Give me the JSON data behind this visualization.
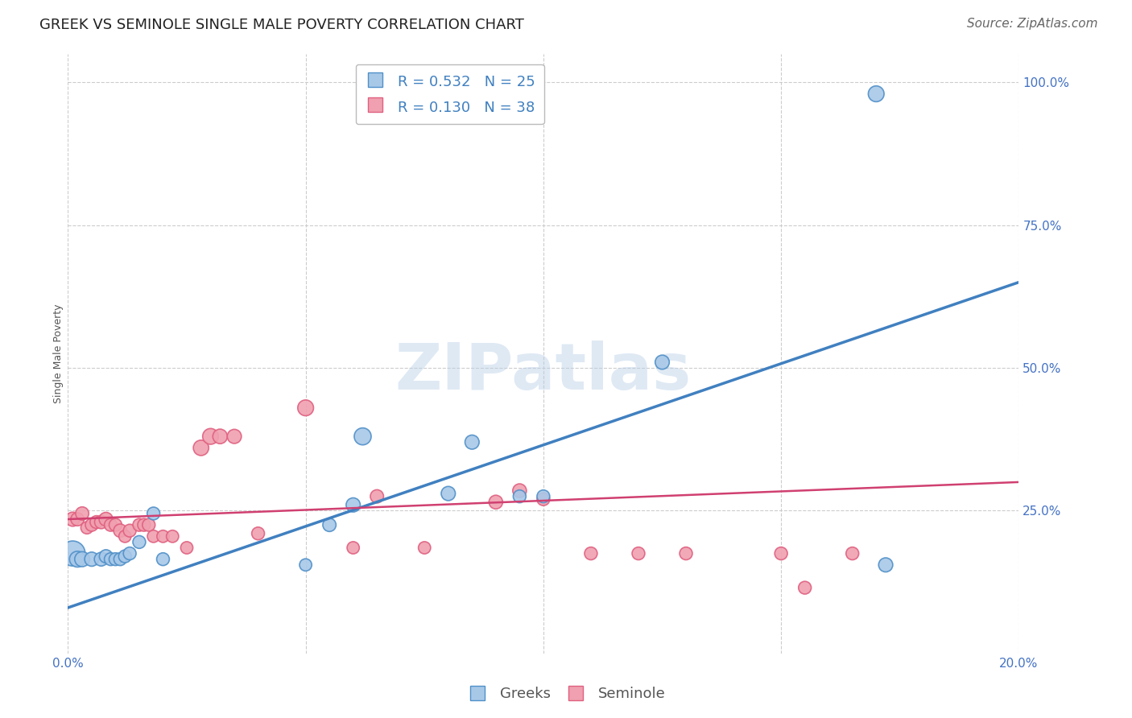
{
  "title": "GREEK VS SEMINOLE SINGLE MALE POVERTY CORRELATION CHART",
  "source": "Source: ZipAtlas.com",
  "ylabel_label": "Single Male Poverty",
  "watermark": "ZIPatlas",
  "xlim": [
    0.0,
    0.2
  ],
  "ylim": [
    0.0,
    1.05
  ],
  "xticks": [
    0.0,
    0.05,
    0.1,
    0.15,
    0.2
  ],
  "xticklabels": [
    "0.0%",
    "",
    "",
    "",
    "20.0%"
  ],
  "yticks_right": [
    1.0,
    0.75,
    0.5,
    0.25
  ],
  "yticklabels_right": [
    "100.0%",
    "75.0%",
    "50.0%",
    "25.0%"
  ],
  "greek_color": "#a8c8e8",
  "seminole_color": "#f0a0b0",
  "greek_edge_color": "#5090c8",
  "seminole_edge_color": "#e06080",
  "greek_line_color": "#4080c0",
  "seminole_line_color": "#d04070",
  "greek_R": 0.532,
  "greek_N": 25,
  "seminole_R": 0.13,
  "seminole_N": 38,
  "greek_trend_x": [
    0.0,
    0.2
  ],
  "greek_trend_y": [
    0.08,
    0.65
  ],
  "seminole_trend_x": [
    0.0,
    0.2
  ],
  "seminole_trend_y": [
    0.235,
    0.3
  ],
  "greeks_x": [
    0.001,
    0.002,
    0.003,
    0.005,
    0.007,
    0.008,
    0.009,
    0.01,
    0.011,
    0.012,
    0.013,
    0.015,
    0.018,
    0.02,
    0.05,
    0.055,
    0.06,
    0.062,
    0.08,
    0.085,
    0.095,
    0.1,
    0.125,
    0.17,
    0.172
  ],
  "greeks_y": [
    0.175,
    0.165,
    0.165,
    0.165,
    0.165,
    0.17,
    0.165,
    0.165,
    0.165,
    0.17,
    0.175,
    0.195,
    0.245,
    0.165,
    0.155,
    0.225,
    0.26,
    0.38,
    0.28,
    0.37,
    0.275,
    0.275,
    0.51,
    0.98,
    0.155
  ],
  "greeks_size": [
    500,
    200,
    180,
    160,
    150,
    140,
    130,
    130,
    130,
    130,
    130,
    130,
    130,
    130,
    120,
    140,
    160,
    230,
    160,
    160,
    130,
    130,
    160,
    200,
    160
  ],
  "seminoles_x": [
    0.001,
    0.002,
    0.003,
    0.004,
    0.005,
    0.006,
    0.007,
    0.008,
    0.009,
    0.01,
    0.011,
    0.012,
    0.013,
    0.015,
    0.016,
    0.017,
    0.018,
    0.02,
    0.022,
    0.025,
    0.028,
    0.03,
    0.032,
    0.035,
    0.04,
    0.05,
    0.06,
    0.065,
    0.075,
    0.09,
    0.095,
    0.1,
    0.11,
    0.12,
    0.13,
    0.15,
    0.155,
    0.165
  ],
  "seminoles_y": [
    0.235,
    0.235,
    0.245,
    0.22,
    0.225,
    0.23,
    0.23,
    0.235,
    0.225,
    0.225,
    0.215,
    0.205,
    0.215,
    0.225,
    0.225,
    0.225,
    0.205,
    0.205,
    0.205,
    0.185,
    0.36,
    0.38,
    0.38,
    0.38,
    0.21,
    0.43,
    0.185,
    0.275,
    0.185,
    0.265,
    0.285,
    0.27,
    0.175,
    0.175,
    0.175,
    0.175,
    0.115,
    0.175
  ],
  "seminoles_size": [
    160,
    140,
    140,
    120,
    130,
    130,
    140,
    150,
    130,
    130,
    140,
    120,
    130,
    130,
    130,
    130,
    120,
    120,
    120,
    120,
    190,
    200,
    170,
    160,
    130,
    200,
    120,
    140,
    120,
    150,
    150,
    130,
    130,
    130,
    130,
    130,
    130,
    130
  ],
  "background_color": "#ffffff",
  "grid_color": "#cccccc",
  "title_fontsize": 13,
  "axis_label_fontsize": 9,
  "tick_fontsize": 11,
  "legend_fontsize": 13,
  "source_fontsize": 11
}
